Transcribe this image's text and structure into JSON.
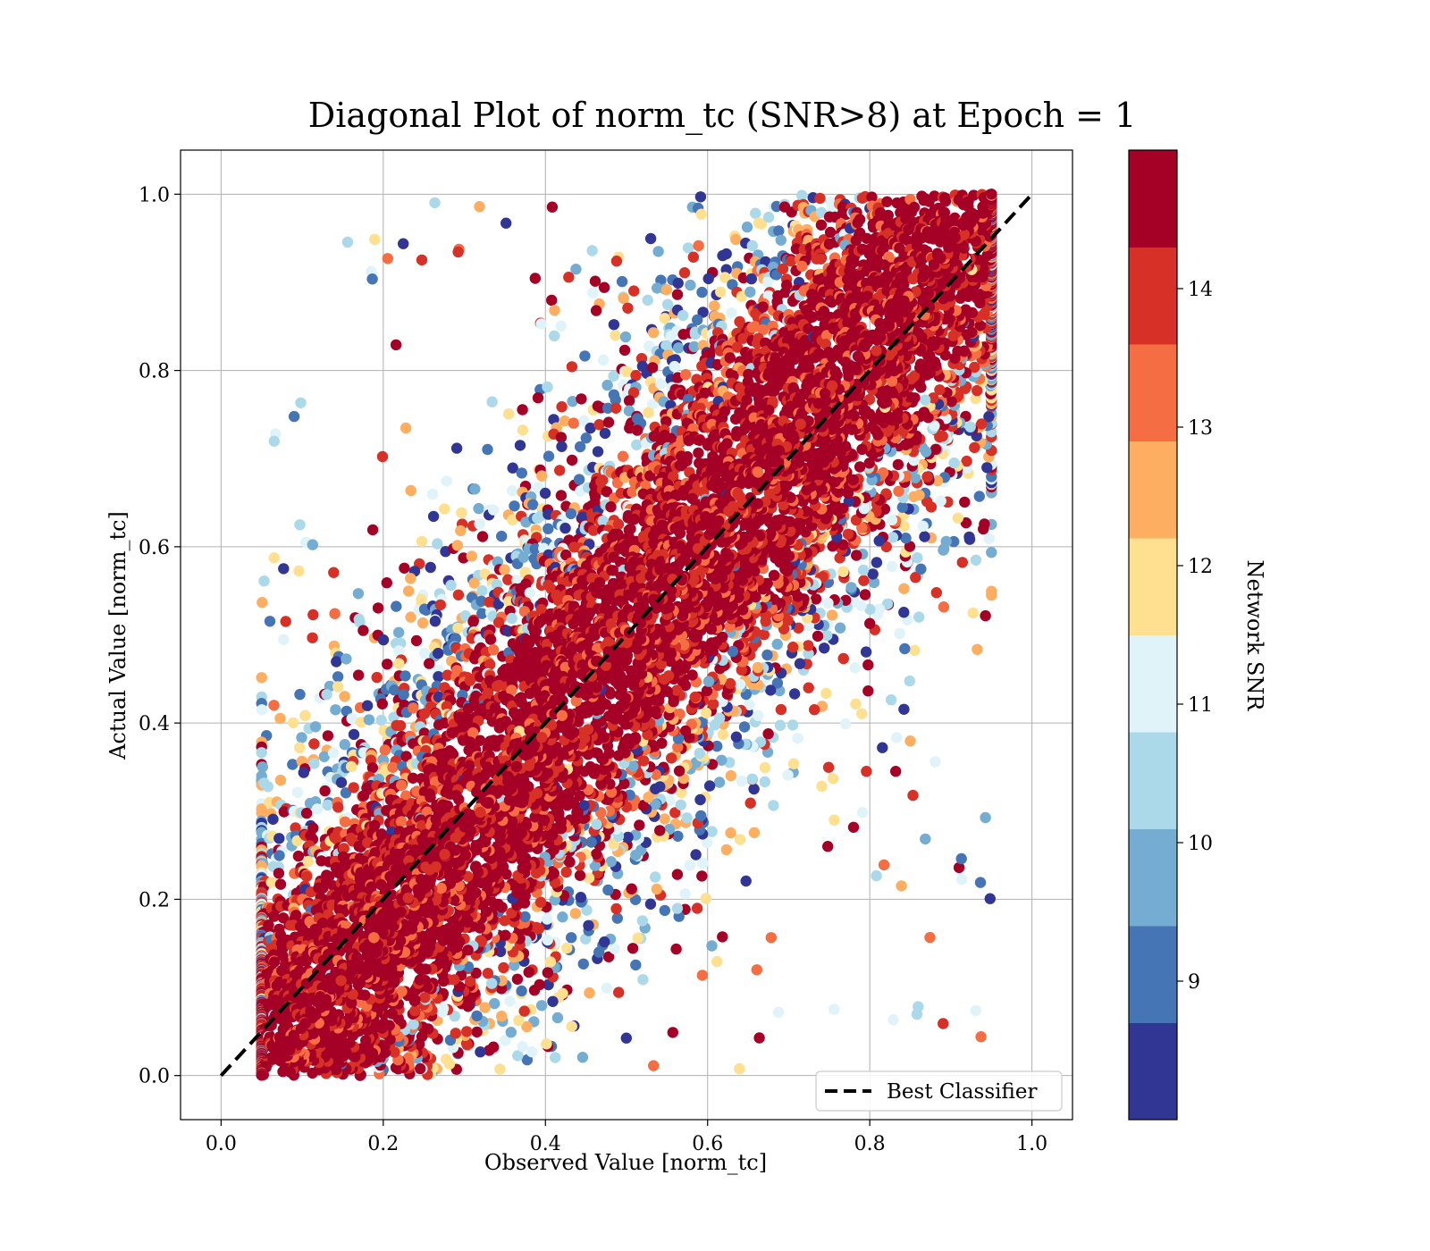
{
  "chart_data": {
    "type": "scatter",
    "title": "Diagonal Plot of norm_tc (SNR>8) at Epoch = 1",
    "xlabel": "Observed Value [norm_tc]",
    "ylabel": "Actual Value [norm_tc]",
    "xlim": [
      -0.05,
      1.05
    ],
    "ylim": [
      -0.05,
      1.05
    ],
    "xticks": [
      "0.0",
      "0.2",
      "0.4",
      "0.6",
      "0.8",
      "1.0"
    ],
    "yticks": [
      "0.0",
      "0.2",
      "0.4",
      "0.6",
      "0.8",
      "1.0"
    ],
    "grid": true,
    "legend": {
      "position": "bottom-right",
      "entries": [
        {
          "label": "Best Classifier",
          "style": "dashed",
          "color": "#000000"
        }
      ]
    },
    "reference_line": {
      "label": "Best Classifier",
      "x": [
        0.0,
        1.0
      ],
      "y": [
        0.0,
        1.0
      ]
    },
    "point_cloud": {
      "description_source": "scatter of predictions colored by network SNR",
      "approx_x_range": [
        0.05,
        0.95
      ],
      "approx_y_range": [
        0.0,
        1.0
      ],
      "dense_band_halfwidth": 0.15
    },
    "colorbar": {
      "label": "Network SNR",
      "range": [
        8,
        15
      ],
      "ticks": [
        "9",
        "10",
        "11",
        "12",
        "13",
        "14"
      ],
      "tick_values": [
        9,
        10,
        11,
        12,
        13,
        14
      ],
      "colors": [
        "#313695",
        "#4575b4",
        "#74add1",
        "#abd9e9",
        "#e0f3f8",
        "#fee090",
        "#fdae61",
        "#f46d43",
        "#d73027",
        "#a50026"
      ]
    }
  }
}
